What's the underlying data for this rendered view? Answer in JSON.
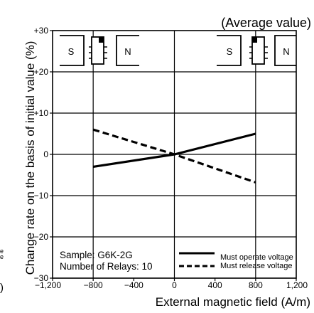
{
  "chart_data": {
    "type": "line",
    "title": "(Average value)",
    "xlabel": "External magnetic field (A/m)",
    "ylabel": "Change rate on the basis of initial value (%)",
    "xlim": [
      -1200,
      1200
    ],
    "ylim": [
      -30,
      30
    ],
    "x_ticks": [
      -1200,
      -800,
      -400,
      0,
      400,
      800,
      1200
    ],
    "x_tick_labels": [
      "−1,200",
      "−800",
      "−400",
      "0",
      "400",
      "800",
      "1,200"
    ],
    "y_ticks": [
      -30,
      -20,
      -10,
      0,
      10,
      20,
      30
    ],
    "y_tick_labels": [
      "−30",
      "−20",
      "−10",
      "0",
      "+10",
      "+20",
      "+30"
    ],
    "grid": true,
    "x_gridlines": [
      -800,
      0,
      800
    ],
    "series": [
      {
        "name": "Must operate voltage",
        "style": "solid",
        "x": [
          -800,
          0,
          800
        ],
        "y": [
          -3,
          0,
          5
        ]
      },
      {
        "name": "Must release voltage",
        "style": "dashed",
        "x": [
          -800,
          0,
          800
        ],
        "y": [
          6,
          0,
          -6.8
        ]
      }
    ],
    "legend_placement": "bottom-right",
    "annotation": {
      "lines": [
        "Sample: G6K-2G",
        "Number of Relays: 10"
      ]
    },
    "icons": {
      "left": {
        "magnet_left": "S",
        "magnet_right": "N"
      },
      "right": {
        "magnet_left": "S",
        "magnet_right": "N"
      }
    },
    "left_fragments": [
      "e",
      "e",
      ")"
    ]
  }
}
